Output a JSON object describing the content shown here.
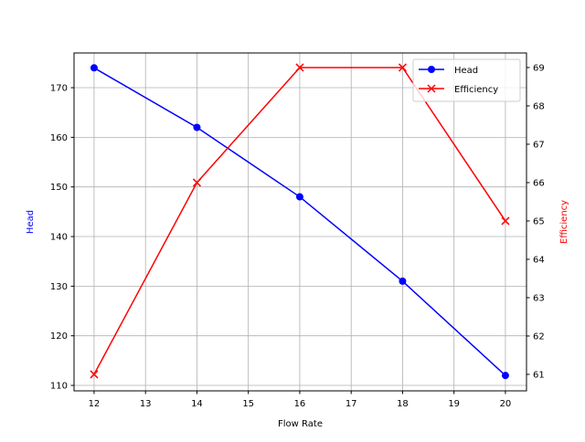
{
  "chart_data": {
    "type": "line",
    "title": "",
    "xlabel": "Flow Rate",
    "ylabel": "Head",
    "y2label": "Efficiency",
    "x": [
      12,
      14,
      16,
      18,
      20
    ],
    "xlim": [
      11.61,
      20.41
    ],
    "ylim": [
      108.9,
      177.0
    ],
    "y2lim": [
      60.57,
      69.38
    ],
    "xticks": [
      12,
      13,
      14,
      15,
      16,
      17,
      18,
      19,
      20
    ],
    "yticks": [
      110,
      120,
      130,
      140,
      150,
      160,
      170
    ],
    "y2ticks": [
      61,
      62,
      63,
      64,
      65,
      66,
      67,
      68,
      69
    ],
    "grid": true,
    "legend_position": "top-right",
    "series": [
      {
        "name": "Head",
        "axis": "left",
        "color": "#0000ff",
        "marker": "circle",
        "values": [
          174,
          162,
          148,
          131,
          112
        ]
      },
      {
        "name": "Efficiency",
        "axis": "right",
        "color": "#ff0000",
        "marker": "x",
        "values": [
          61,
          66,
          69,
          69,
          65
        ]
      }
    ]
  }
}
